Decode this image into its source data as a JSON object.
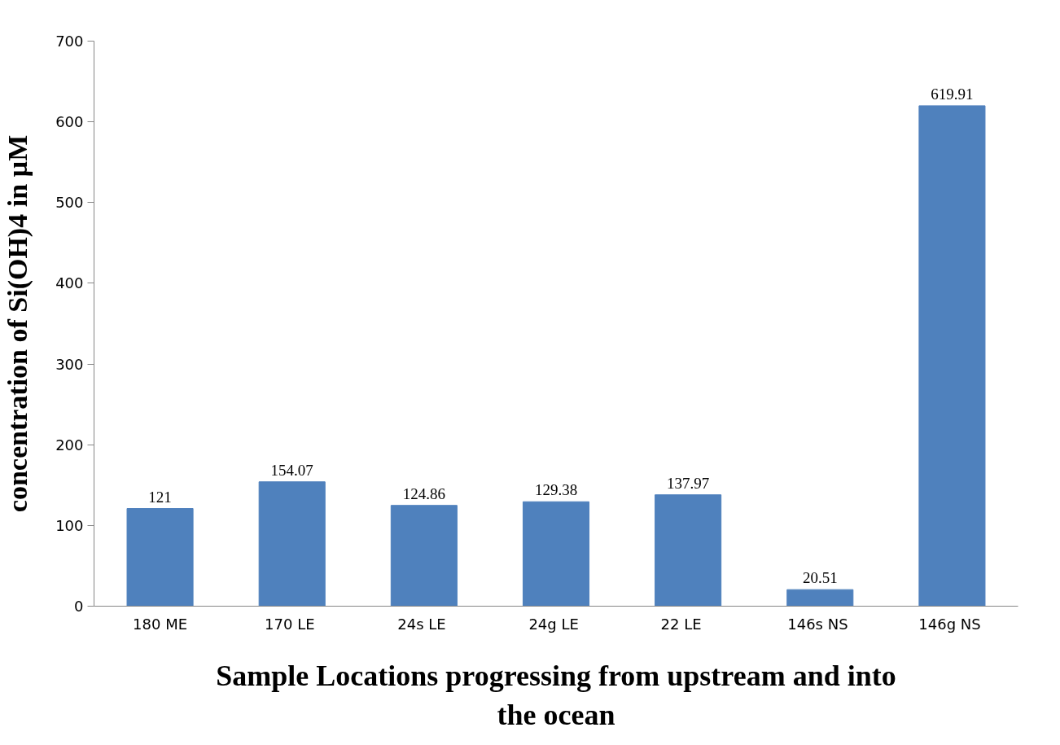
{
  "chart_data": {
    "type": "bar",
    "categories": [
      "180 ME",
      "170  LE",
      "24s  LE",
      "24g  LE",
      "22    LE",
      "146s  NS",
      "146g  NS"
    ],
    "values": [
      121,
      154.07,
      124.86,
      129.38,
      137.97,
      20.51,
      619.91
    ],
    "color": "#4f81bd",
    "xlabel": "Sample Locations progressing from upstream and into the ocean",
    "ylabel": "concentration of Si(OH)4 in µM",
    "ylim": [
      0,
      700
    ],
    "yticks": [
      0,
      100,
      200,
      300,
      400,
      500,
      600,
      700
    ],
    "grid": false,
    "data_labels": true
  }
}
